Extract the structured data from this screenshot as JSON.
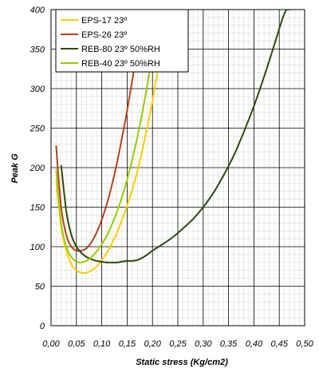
{
  "chart_data": {
    "type": "line",
    "title": "",
    "xlabel": "Static stress (Kg/cm2)",
    "ylabel": "Peak G",
    "xlim": [
      0,
      0.5
    ],
    "ylim": [
      0,
      400
    ],
    "x_ticks": [
      "0,00",
      "0,05",
      "0,10",
      "0,15",
      "0,20",
      "0,25",
      "0,30",
      "0,35",
      "0,40",
      "0,45",
      "0,50"
    ],
    "y_ticks": [
      "0",
      "50",
      "100",
      "150",
      "200",
      "250",
      "300",
      "350",
      "400"
    ],
    "grid": true,
    "minor_grid": true,
    "legend_position": "top-left",
    "series": [
      {
        "name": "EPS-17 23º",
        "color": "#ffcc00",
        "x": [
          0.01,
          0.02,
          0.03,
          0.04,
          0.05,
          0.06,
          0.07,
          0.08,
          0.09,
          0.1,
          0.11,
          0.12,
          0.13,
          0.14,
          0.15,
          0.16,
          0.17,
          0.18,
          0.19,
          0.2,
          0.21,
          0.22,
          0.23
        ],
        "y": [
          185,
          125,
          95,
          78,
          70,
          67,
          67,
          70,
          75,
          83,
          92,
          104,
          118,
          134,
          152,
          172,
          195,
          222,
          252,
          285,
          322,
          362,
          400
        ]
      },
      {
        "name": "EPS-26 23º",
        "color": "#b5441a",
        "x": [
          0.01,
          0.02,
          0.03,
          0.04,
          0.05,
          0.06,
          0.07,
          0.08,
          0.09,
          0.1,
          0.11,
          0.12,
          0.13,
          0.14,
          0.15,
          0.16,
          0.17,
          0.18,
          0.19,
          0.2
        ],
        "y": [
          228,
          150,
          115,
          100,
          95,
          95,
          98,
          106,
          118,
          134,
          154,
          178,
          206,
          238,
          272,
          310,
          350,
          395,
          400,
          400
        ]
      },
      {
        "name": "REB-80 23º 50%RH",
        "color": "#2d4a0c",
        "x": [
          0.02,
          0.03,
          0.04,
          0.05,
          0.06,
          0.07,
          0.08,
          0.09,
          0.1,
          0.11,
          0.12,
          0.13,
          0.14,
          0.15,
          0.16,
          0.17,
          0.18,
          0.19,
          0.2,
          0.22,
          0.24,
          0.26,
          0.28,
          0.3,
          0.32,
          0.34,
          0.36,
          0.38,
          0.4,
          0.42,
          0.44,
          0.46,
          0.47
        ],
        "y": [
          203,
          145,
          115,
          100,
          92,
          87,
          84,
          82,
          81,
          80,
          80,
          80,
          81,
          82,
          82,
          83,
          86,
          90,
          95,
          103,
          112,
          123,
          135,
          150,
          168,
          190,
          215,
          245,
          278,
          315,
          355,
          395,
          400
        ]
      },
      {
        "name": "REB-40 23º 50%RH",
        "color": "#99cc00",
        "x": [
          0.01,
          0.02,
          0.03,
          0.04,
          0.05,
          0.06,
          0.07,
          0.08,
          0.09,
          0.1,
          0.11,
          0.12,
          0.13,
          0.14,
          0.15,
          0.16,
          0.17,
          0.18,
          0.19,
          0.2,
          0.21,
          0.22
        ],
        "y": [
          198,
          130,
          100,
          87,
          81,
          80,
          82,
          87,
          94,
          103,
          114,
          128,
          144,
          163,
          185,
          210,
          238,
          270,
          305,
          345,
          390,
          400
        ]
      }
    ]
  }
}
